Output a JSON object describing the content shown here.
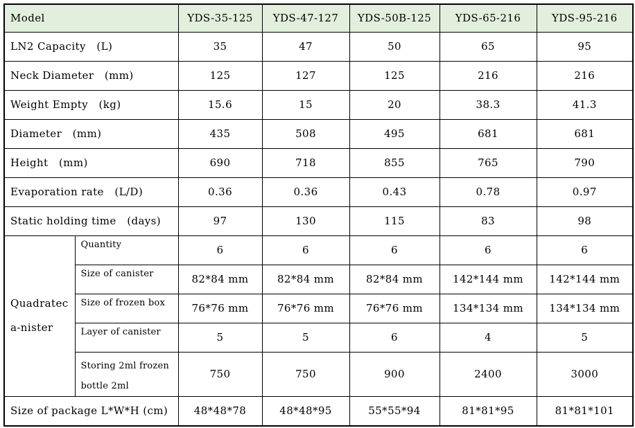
{
  "colors": {
    "header_bg": "#e2efdc",
    "border": "#000000",
    "text": "#000000"
  },
  "header": {
    "model_label": "Model",
    "columns": [
      "YDS-35-125",
      "YDS-47-127",
      "YDS-50B-125",
      "YDS-65-216",
      "YDS-95-216"
    ]
  },
  "rows": [
    {
      "label": "LN2 Capacity   (L)",
      "values": [
        "35",
        "47",
        "50",
        "65",
        "95"
      ]
    },
    {
      "label": "Neck Diameter   (mm)",
      "values": [
        "125",
        "127",
        "125",
        "216",
        "216"
      ]
    },
    {
      "label": "Weight Empty   (kg)",
      "values": [
        "15.6",
        "15",
        "20",
        "38.3",
        "41.3"
      ]
    },
    {
      "label": "Diameter   (mm)",
      "values": [
        "435",
        "508",
        "495",
        "681",
        "681"
      ]
    },
    {
      "label": "Height   (mm)",
      "values": [
        "690",
        "718",
        "855",
        "765",
        "790"
      ]
    },
    {
      "label": "Evaporation rate   (L/D)",
      "values": [
        "0.36",
        "0.36",
        "0.43",
        "0.78",
        "0.97"
      ]
    },
    {
      "label": "Static holding time   (days)",
      "values": [
        "97",
        "130",
        "115",
        "83",
        "98"
      ]
    }
  ],
  "canister_group": {
    "label_line1": "Quadratec",
    "label_line2": "a-nister",
    "sub_rows": [
      {
        "label": "Quantity",
        "values": [
          "6",
          "6",
          "6",
          "6",
          "6"
        ]
      },
      {
        "label": "Size of canister",
        "values": [
          "82*84 mm",
          "82*84 mm",
          "82*84 mm",
          "142*144 mm",
          "142*144 mm"
        ]
      },
      {
        "label": "Size of frozen box",
        "values": [
          "76*76 mm",
          "76*76 mm",
          "76*76 mm",
          "134*134 mm",
          "134*134 mm"
        ]
      },
      {
        "label": "Layer of canister",
        "values": [
          "5",
          "5",
          "6",
          "4",
          "5"
        ]
      },
      {
        "label_line1": "Storing 2ml frozen",
        "label_line2": "bottle 2ml",
        "values": [
          "750",
          "750",
          "900",
          "2400",
          "3000"
        ]
      }
    ]
  },
  "footer_row": {
    "label": "Size of package L*W*H (cm)",
    "values": [
      "48*48*78",
      "48*48*95",
      "55*55*94",
      "81*81*95",
      "81*81*101"
    ]
  }
}
